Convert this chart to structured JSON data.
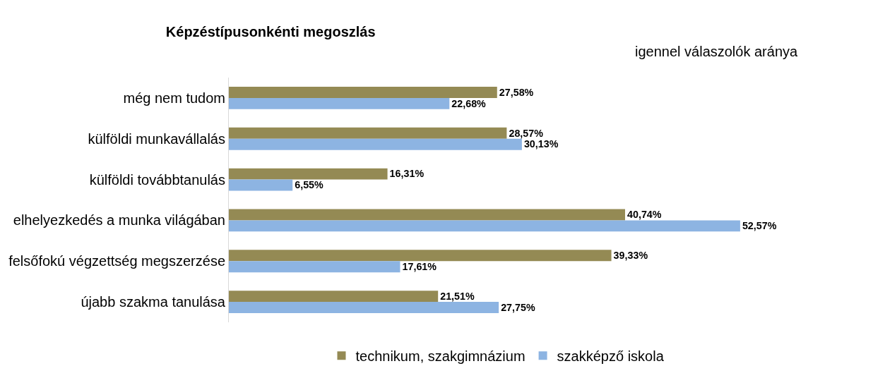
{
  "chart_data": {
    "type": "bar",
    "orientation": "horizontal",
    "title": "Képzéstípusonkénti megoszlás",
    "subtitle": "igennel válaszolók aránya",
    "categories": [
      "még nem tudom",
      "külföldi munkavállalás",
      "külföldi továbbtanulás",
      "elhelyezkedés a munka világában",
      "felsőfokú végzettség megszerzése",
      "újabb szakma tanulása"
    ],
    "series": [
      {
        "name": "technikum, szakgimnázium",
        "color": "#948a54",
        "values": [
          27.58,
          28.57,
          16.31,
          40.74,
          39.33,
          21.51
        ],
        "value_labels": [
          "27,58%",
          "28,57%",
          "16,31%",
          "40,74%",
          "39,33%",
          "21,51%"
        ]
      },
      {
        "name": "szakképző iskola",
        "color": "#8db4e2",
        "values": [
          22.68,
          30.13,
          6.55,
          52.57,
          17.61,
          27.75
        ],
        "value_labels": [
          "22,68%",
          "30,13%",
          "6,55%",
          "52,57%",
          "17,61%",
          "27,75%"
        ]
      }
    ],
    "grid": false,
    "legend": "bottom",
    "tick_labels": "y"
  }
}
